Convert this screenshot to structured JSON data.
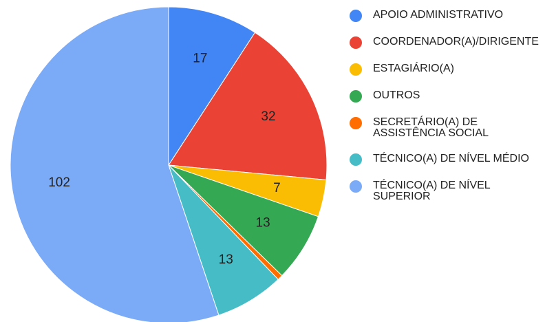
{
  "chart_data": {
    "type": "pie",
    "categories": [
      "APOIO ADMINISTRATIVO",
      "COORDENADOR(A)/DIRIGENTE",
      "ESTAGIÁRIO(A)",
      "OUTROS",
      "SECRETÁRIO(A) DE ASSISTÊNCIA SOCIAL",
      "TÉCNICO(A) DE NÍVEL MÉDIO",
      "TÉCNICO(A) DE NÍVEL SUPERIOR"
    ],
    "values": [
      17,
      32,
      7,
      13,
      1,
      13,
      102
    ],
    "colors": [
      "#4285f4",
      "#ea4335",
      "#fbbc04",
      "#34a853",
      "#ff6d01",
      "#46bdc6",
      "#7baaf7"
    ],
    "legend": "right"
  }
}
